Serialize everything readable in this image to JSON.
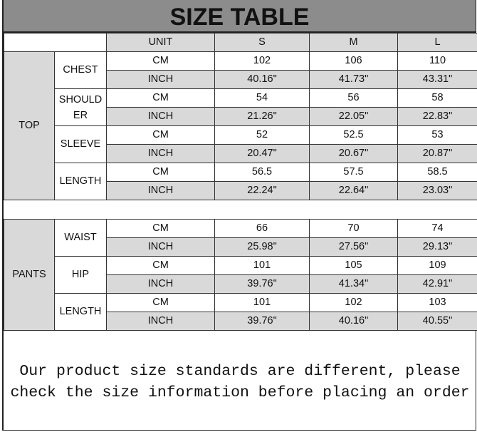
{
  "title": "SIZE TABLE",
  "header": {
    "unit": "UNIT",
    "sizes": [
      "S",
      "M",
      "L"
    ]
  },
  "colors": {
    "title_bg": "#8c8c8c",
    "shade": "#d9d9d9"
  },
  "groups": [
    {
      "label": "TOP",
      "measures": [
        {
          "label": "CHEST",
          "cm": [
            "102",
            "106",
            "110"
          ],
          "inch": [
            "40.16\"",
            "41.73\"",
            "43.31\""
          ]
        },
        {
          "label": "SHOULDER",
          "cm": [
            "54",
            "56",
            "58"
          ],
          "inch": [
            "21.26\"",
            "22.05\"",
            "22.83\""
          ]
        },
        {
          "label": "SLEEVE",
          "cm": [
            "52",
            "52.5",
            "53"
          ],
          "inch": [
            "20.47\"",
            "20.67\"",
            "20.87\""
          ]
        },
        {
          "label": "LENGTH",
          "cm": [
            "56.5",
            "57.5",
            "58.5"
          ],
          "inch": [
            "22.24\"",
            "22.64\"",
            "23.03\""
          ]
        }
      ]
    },
    {
      "label": "PANTS",
      "measures": [
        {
          "label": "WAIST",
          "cm": [
            "66",
            "70",
            "74"
          ],
          "inch": [
            "25.98\"",
            "27.56\"",
            "29.13\""
          ]
        },
        {
          "label": "HIP",
          "cm": [
            "101",
            "105",
            "109"
          ],
          "inch": [
            "39.76\"",
            "41.34\"",
            "42.91\""
          ]
        },
        {
          "label": "LENGTH",
          "cm": [
            "101",
            "102",
            "103"
          ],
          "inch": [
            "39.76\"",
            "40.16\"",
            "40.55\""
          ]
        }
      ]
    }
  ],
  "units": {
    "cm": "CM",
    "inch": "INCH"
  },
  "note": "Our product size standards are different, please check the size information before placing an order"
}
